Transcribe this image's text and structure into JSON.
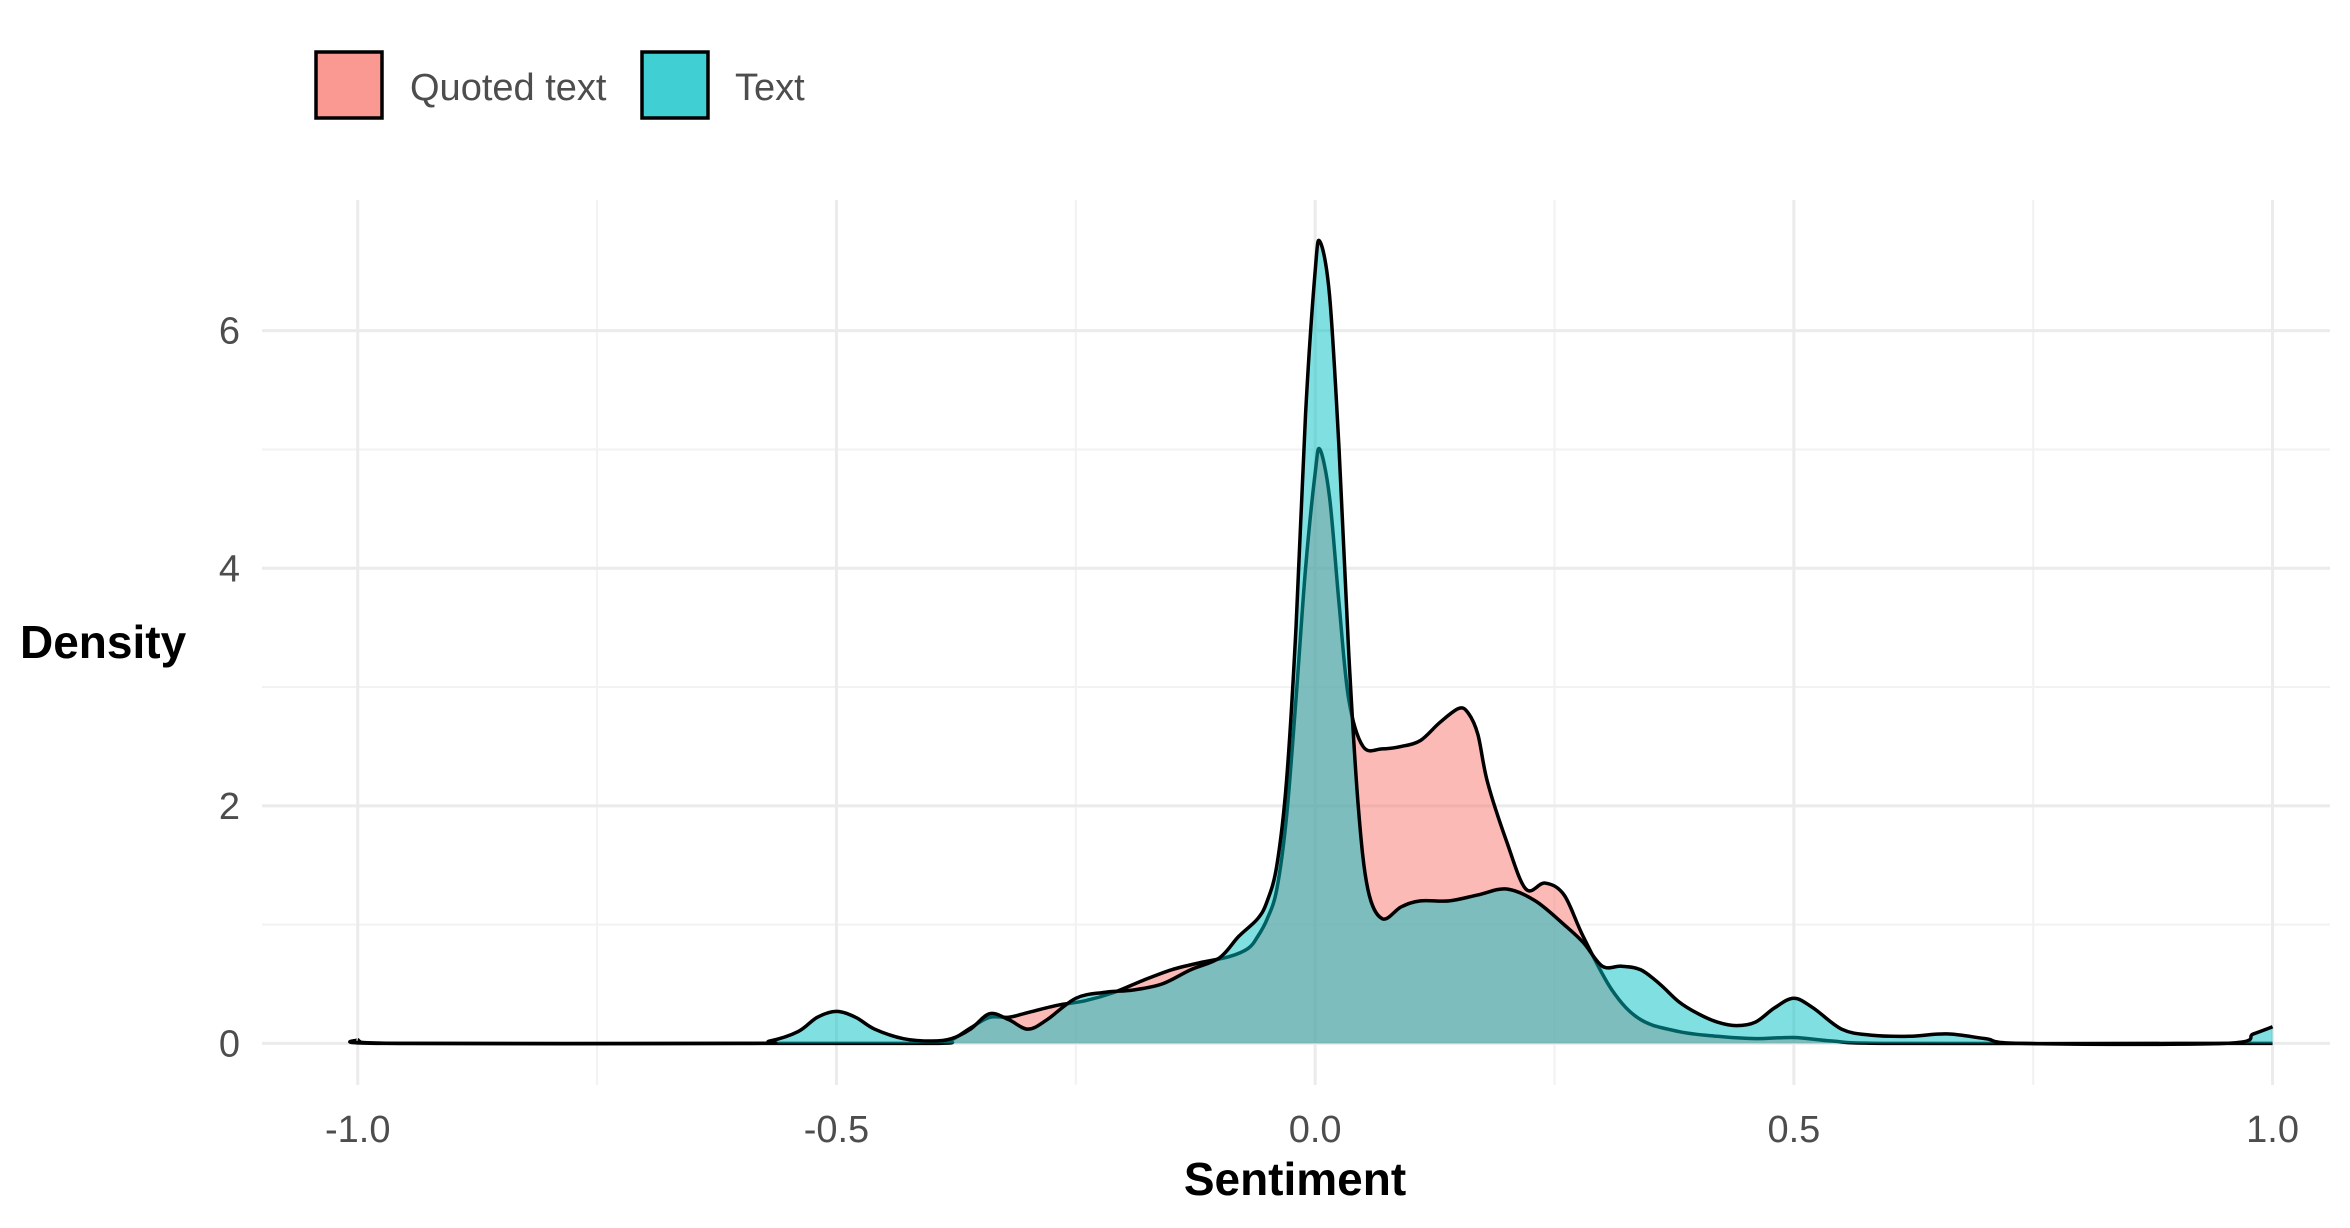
{
  "chart_data": {
    "type": "area",
    "xlabel": "Sentiment",
    "ylabel": "Density",
    "xlim": [
      -1.1,
      1.06
    ],
    "ylim": [
      -0.35,
      7.1
    ],
    "x_ticks": [
      -1.0,
      -0.5,
      0.0,
      0.5,
      1.0
    ],
    "x_tick_labels": [
      "-1.0",
      "-0.5",
      "0.0",
      "0.5",
      "1.0"
    ],
    "y_ticks": [
      0,
      2,
      4,
      6
    ],
    "y_tick_labels": [
      "0",
      "2",
      "4",
      "6"
    ],
    "grid": true,
    "legend_position": "top-left",
    "series": [
      {
        "name": "Quoted text",
        "color": "#F8766D",
        "points": [
          [
            -1.0,
            0.02
          ],
          [
            -0.95,
            0.0
          ],
          [
            -0.6,
            0.0
          ],
          [
            -0.4,
            0.0
          ],
          [
            -0.38,
            0.03
          ],
          [
            -0.36,
            0.13
          ],
          [
            -0.34,
            0.22
          ],
          [
            -0.32,
            0.22
          ],
          [
            -0.3,
            0.26
          ],
          [
            -0.27,
            0.32
          ],
          [
            -0.24,
            0.36
          ],
          [
            -0.21,
            0.43
          ],
          [
            -0.18,
            0.53
          ],
          [
            -0.15,
            0.62
          ],
          [
            -0.12,
            0.68
          ],
          [
            -0.09,
            0.73
          ],
          [
            -0.07,
            0.8
          ],
          [
            -0.06,
            0.9
          ],
          [
            -0.05,
            1.05
          ],
          [
            -0.04,
            1.3
          ],
          [
            -0.03,
            1.9
          ],
          [
            -0.02,
            2.9
          ],
          [
            -0.01,
            4.0
          ],
          [
            0.0,
            4.8
          ],
          [
            0.005,
            5.0
          ],
          [
            0.015,
            4.6
          ],
          [
            0.025,
            3.7
          ],
          [
            0.035,
            2.9
          ],
          [
            0.05,
            2.5
          ],
          [
            0.07,
            2.48
          ],
          [
            0.09,
            2.5
          ],
          [
            0.11,
            2.55
          ],
          [
            0.13,
            2.7
          ],
          [
            0.15,
            2.82
          ],
          [
            0.16,
            2.78
          ],
          [
            0.17,
            2.6
          ],
          [
            0.18,
            2.2
          ],
          [
            0.2,
            1.7
          ],
          [
            0.22,
            1.3
          ],
          [
            0.24,
            1.35
          ],
          [
            0.26,
            1.25
          ],
          [
            0.28,
            0.9
          ],
          [
            0.31,
            0.45
          ],
          [
            0.34,
            0.2
          ],
          [
            0.38,
            0.1
          ],
          [
            0.42,
            0.06
          ],
          [
            0.46,
            0.04
          ],
          [
            0.5,
            0.05
          ],
          [
            0.54,
            0.02
          ],
          [
            0.6,
            0.0
          ],
          [
            0.9,
            0.0
          ],
          [
            1.0,
            0.0
          ]
        ]
      },
      {
        "name": "Text",
        "color": "#00BFC4",
        "points": [
          [
            -1.0,
            0.03
          ],
          [
            -0.97,
            0.0
          ],
          [
            -0.6,
            0.0
          ],
          [
            -0.57,
            0.02
          ],
          [
            -0.54,
            0.1
          ],
          [
            -0.52,
            0.22
          ],
          [
            -0.5,
            0.27
          ],
          [
            -0.48,
            0.22
          ],
          [
            -0.46,
            0.12
          ],
          [
            -0.43,
            0.04
          ],
          [
            -0.4,
            0.02
          ],
          [
            -0.38,
            0.04
          ],
          [
            -0.36,
            0.12
          ],
          [
            -0.34,
            0.25
          ],
          [
            -0.32,
            0.2
          ],
          [
            -0.3,
            0.12
          ],
          [
            -0.28,
            0.2
          ],
          [
            -0.25,
            0.38
          ],
          [
            -0.22,
            0.43
          ],
          [
            -0.19,
            0.45
          ],
          [
            -0.16,
            0.5
          ],
          [
            -0.13,
            0.62
          ],
          [
            -0.1,
            0.72
          ],
          [
            -0.08,
            0.9
          ],
          [
            -0.06,
            1.05
          ],
          [
            -0.05,
            1.2
          ],
          [
            -0.04,
            1.5
          ],
          [
            -0.03,
            2.2
          ],
          [
            -0.02,
            3.5
          ],
          [
            -0.01,
            5.3
          ],
          [
            0.0,
            6.5
          ],
          [
            0.005,
            6.75
          ],
          [
            0.015,
            6.3
          ],
          [
            0.025,
            5.0
          ],
          [
            0.035,
            3.3
          ],
          [
            0.045,
            2.0
          ],
          [
            0.055,
            1.3
          ],
          [
            0.07,
            1.05
          ],
          [
            0.09,
            1.15
          ],
          [
            0.11,
            1.2
          ],
          [
            0.14,
            1.2
          ],
          [
            0.17,
            1.25
          ],
          [
            0.2,
            1.3
          ],
          [
            0.23,
            1.2
          ],
          [
            0.26,
            1.0
          ],
          [
            0.28,
            0.85
          ],
          [
            0.3,
            0.65
          ],
          [
            0.32,
            0.65
          ],
          [
            0.34,
            0.62
          ],
          [
            0.36,
            0.5
          ],
          [
            0.38,
            0.35
          ],
          [
            0.4,
            0.25
          ],
          [
            0.42,
            0.18
          ],
          [
            0.44,
            0.15
          ],
          [
            0.46,
            0.18
          ],
          [
            0.48,
            0.3
          ],
          [
            0.5,
            0.38
          ],
          [
            0.52,
            0.3
          ],
          [
            0.55,
            0.12
          ],
          [
            0.58,
            0.07
          ],
          [
            0.62,
            0.06
          ],
          [
            0.66,
            0.08
          ],
          [
            0.7,
            0.04
          ],
          [
            0.74,
            0.0
          ],
          [
            0.95,
            0.0
          ],
          [
            0.98,
            0.08
          ],
          [
            1.0,
            0.14
          ]
        ]
      }
    ]
  }
}
